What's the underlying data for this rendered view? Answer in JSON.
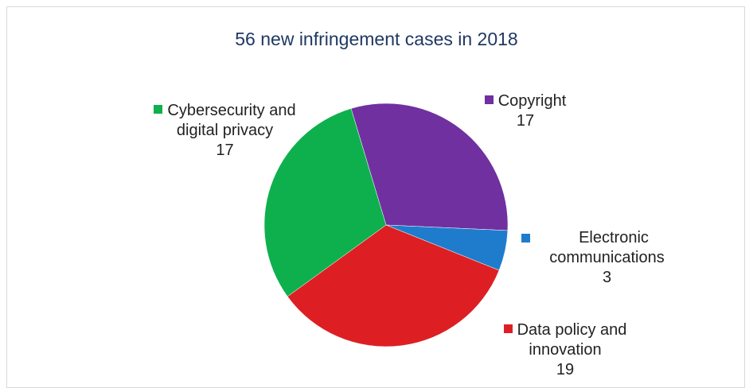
{
  "chart_data": {
    "type": "pie",
    "title": "56 new infringement cases in 2018",
    "categories": [
      "Copyright",
      "Electronic communications",
      "Data policy and innovation",
      "Cybersecurity and digital privacy"
    ],
    "values": [
      17,
      3,
      19,
      17
    ],
    "colors": [
      "#7030a0",
      "#1f7ccc",
      "#dd1f24",
      "#0eb04d"
    ]
  }
}
